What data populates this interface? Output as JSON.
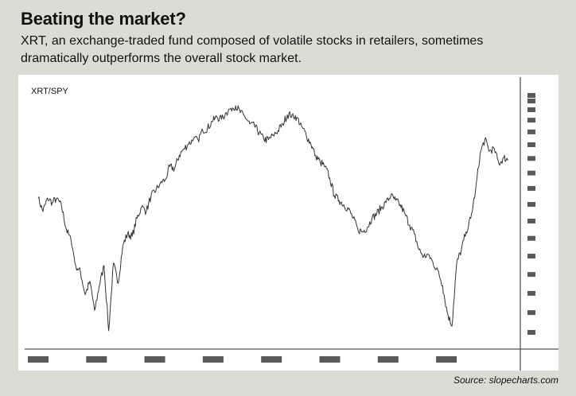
{
  "header": {
    "title": "Beating the market?",
    "subtitle": "XRT, an exchange-traded fund composed of volatile stocks in retailers, sometimes dramatically outperforms the overall stock market."
  },
  "footer": {
    "source": "Source: slopecharts.com"
  },
  "chart_data": {
    "type": "line",
    "series": [
      {
        "name": "XRT/SPY",
        "x": [
          0,
          0.01,
          0.02,
          0.03,
          0.04,
          0.05,
          0.06,
          0.07,
          0.08,
          0.09,
          0.1,
          0.11,
          0.12,
          0.13,
          0.14,
          0.15,
          0.16,
          0.17,
          0.18,
          0.19,
          0.2,
          0.21,
          0.22,
          0.23,
          0.24,
          0.25,
          0.26,
          0.27,
          0.28,
          0.29,
          0.3,
          0.31,
          0.32,
          0.33,
          0.34,
          0.35,
          0.36,
          0.37,
          0.38,
          0.39,
          0.4,
          0.41,
          0.42,
          0.43,
          0.44,
          0.45,
          0.46,
          0.47,
          0.48,
          0.49,
          0.5,
          0.51,
          0.52,
          0.53,
          0.54,
          0.55,
          0.56,
          0.57,
          0.58,
          0.59,
          0.6,
          0.61,
          0.62,
          0.63,
          0.64,
          0.65,
          0.66,
          0.67,
          0.68,
          0.69,
          0.7,
          0.71,
          0.72,
          0.73,
          0.74,
          0.75,
          0.76,
          0.77,
          0.78,
          0.79,
          0.8,
          0.81,
          0.82,
          0.83,
          0.84,
          0.85,
          0.86,
          0.87,
          0.88,
          0.89,
          0.9,
          0.91,
          0.92,
          0.93,
          0.94,
          0.95,
          0.96,
          0.97,
          0.98,
          0.99,
          1.0
        ],
        "values": [
          0.59,
          0.53,
          0.59,
          0.57,
          0.59,
          0.55,
          0.45,
          0.4,
          0.29,
          0.26,
          0.16,
          0.22,
          0.09,
          0.2,
          0.29,
          0.0,
          0.3,
          0.21,
          0.38,
          0.43,
          0.42,
          0.5,
          0.55,
          0.53,
          0.6,
          0.62,
          0.66,
          0.67,
          0.73,
          0.72,
          0.78,
          0.81,
          0.83,
          0.85,
          0.85,
          0.89,
          0.9,
          0.93,
          0.95,
          0.94,
          0.97,
          0.99,
          1.0,
          0.97,
          0.95,
          0.92,
          0.91,
          0.88,
          0.85,
          0.85,
          0.87,
          0.89,
          0.92,
          0.96,
          0.96,
          0.95,
          0.91,
          0.87,
          0.83,
          0.78,
          0.75,
          0.73,
          0.68,
          0.6,
          0.58,
          0.56,
          0.54,
          0.5,
          0.45,
          0.44,
          0.46,
          0.5,
          0.52,
          0.55,
          0.57,
          0.6,
          0.58,
          0.56,
          0.52,
          0.47,
          0.43,
          0.36,
          0.33,
          0.34,
          0.3,
          0.27,
          0.2,
          0.08,
          0.02,
          0.3,
          0.36,
          0.44,
          0.5,
          0.62,
          0.79,
          0.85,
          0.8,
          0.81,
          0.74,
          0.77,
          0.76
        ]
      }
    ],
    "xlim": [
      0,
      1
    ],
    "ylim": [
      -0.05,
      1.05
    ],
    "x_tick_count": 8,
    "y_tick_count": 17,
    "tick_labels_shown": false,
    "grid": false,
    "legend": "top-left",
    "line_color": "#333333",
    "tick_color": "#595959"
  }
}
